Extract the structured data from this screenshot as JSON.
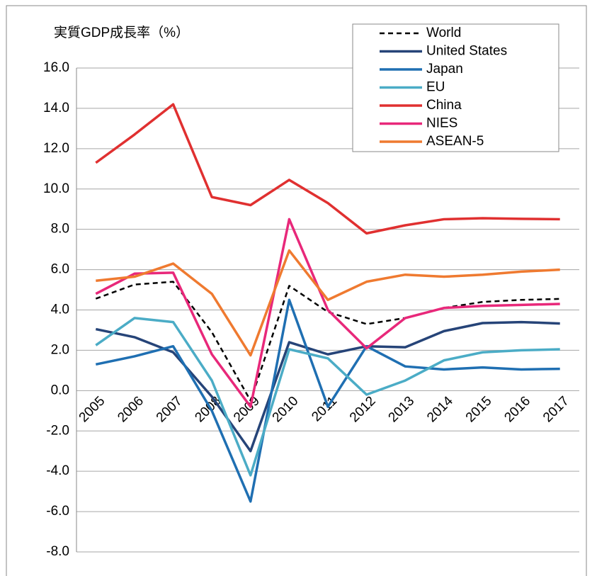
{
  "chart_data": {
    "type": "line",
    "title": "実質GDP成長率（%）",
    "categories": [
      "2005",
      "2006",
      "2007",
      "2008",
      "2009",
      "2010",
      "2011",
      "2012",
      "2013",
      "2014",
      "2015",
      "2016",
      "2017"
    ],
    "series": [
      {
        "name": "World",
        "color": "#000000",
        "dashed": true,
        "values": [
          4.56,
          5.26,
          5.4,
          2.9,
          -0.5,
          5.2,
          3.9,
          3.3,
          3.6,
          4.1,
          4.4,
          4.5,
          4.55
        ]
      },
      {
        "name": "United States",
        "color": "#264478",
        "values": [
          3.05,
          2.65,
          1.9,
          -0.3,
          -3.0,
          2.4,
          1.8,
          2.2,
          2.15,
          2.95,
          3.35,
          3.4,
          3.33
        ]
      },
      {
        "name": "Japan",
        "color": "#1f6fb2",
        "values": [
          1.3,
          1.7,
          2.2,
          -1.0,
          -5.5,
          4.5,
          -0.8,
          2.2,
          1.2,
          1.05,
          1.15,
          1.05,
          1.08
        ]
      },
      {
        "name": "EU",
        "color": "#4bacc6",
        "values": [
          2.25,
          3.6,
          3.4,
          0.5,
          -4.2,
          2.05,
          1.6,
          -0.2,
          0.5,
          1.5,
          1.9,
          2.0,
          2.05
        ]
      },
      {
        "name": "China",
        "color": "#e03030",
        "values": [
          11.3,
          12.7,
          14.2,
          9.6,
          9.2,
          10.45,
          9.3,
          7.8,
          8.2,
          8.5,
          8.55,
          8.52,
          8.5
        ]
      },
      {
        "name": "NIES",
        "color": "#e8287a",
        "values": [
          4.8,
          5.8,
          5.85,
          1.8,
          -0.8,
          8.5,
          4.0,
          2.1,
          3.6,
          4.1,
          4.2,
          4.25,
          4.3
        ]
      },
      {
        "name": "ASEAN-5",
        "color": "#ef7a30",
        "values": [
          5.45,
          5.65,
          6.3,
          4.8,
          1.75,
          6.95,
          4.5,
          5.4,
          5.75,
          5.65,
          5.75,
          5.9,
          6.0
        ]
      }
    ],
    "ylim": [
      -8,
      16
    ],
    "yticks": [
      {
        "value": -8,
        "label": "-8.0"
      },
      {
        "value": -6,
        "label": "-6.0"
      },
      {
        "value": -4,
        "label": "-4.0"
      },
      {
        "value": -2,
        "label": "-2.0"
      },
      {
        "value": 0,
        "label": "0.0"
      },
      {
        "value": 2,
        "label": "2.0"
      },
      {
        "value": 4,
        "label": "4.0"
      },
      {
        "value": 6,
        "label": "6.0"
      },
      {
        "value": 8,
        "label": "8.0"
      },
      {
        "value": 10,
        "label": "10.0"
      },
      {
        "value": 12,
        "label": "12.0"
      },
      {
        "value": 14,
        "label": "14.0"
      },
      {
        "value": 16,
        "label": "16.0"
      }
    ],
    "grid": true
  }
}
